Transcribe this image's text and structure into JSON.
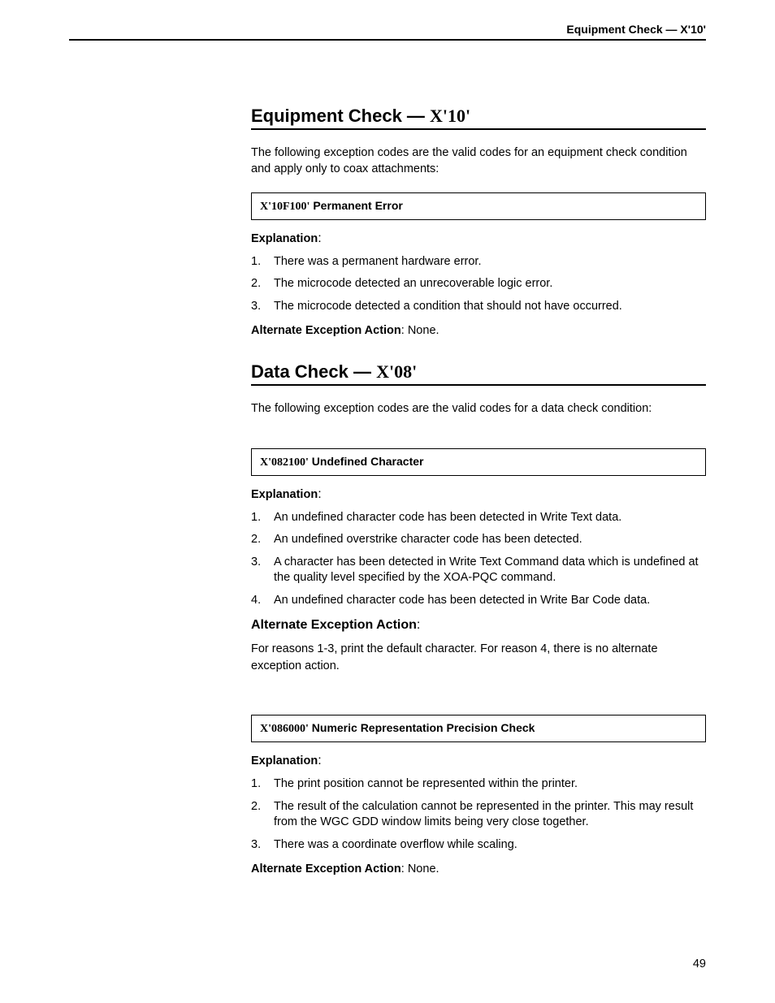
{
  "header": {
    "running_title": "Equipment Check — X'10'"
  },
  "section1": {
    "title_prefix": "Equipment Check — ",
    "title_hex": "X'10'",
    "intro": "The following exception codes are the valid codes for an equipment check condition and apply only to coax attachments:",
    "codebox_hex": "X'10F100'",
    "codebox_label": " Permanent Error",
    "explanation_label": "Explanation",
    "items": [
      "There was a permanent hardware error.",
      "The microcode detected an unrecoverable logic error.",
      "The microcode detected a condition that should not have occurred."
    ],
    "alt_label": "Alternate Exception Action",
    "alt_value": ":  None."
  },
  "section2": {
    "title_prefix": "Data Check — ",
    "title_hex": "X'08'",
    "intro": "The following exception codes are the valid codes for a data check condition:",
    "block1": {
      "codebox_hex": "X'082100'",
      "codebox_label": " Undefined Character",
      "explanation_label": "Explanation",
      "items": [
        "An undefined character code has been detected in Write Text data.",
        "An undefined overstrike character code has been detected.",
        "A character has been detected in Write Text Command data which is undefined at the quality level specified by the XOA-PQC command.",
        "An undefined character code has been detected in Write Bar Code data."
      ],
      "alt_label": "Alternate Exception Action",
      "alt_colon": ":",
      "alt_text": "For reasons 1-3, print the default character. For reason 4, there is no alternate exception action."
    },
    "block2": {
      "codebox_hex": "X'086000'",
      "codebox_label": " Numeric Representation Precision Check",
      "explanation_label": "Explanation",
      "items": [
        "The print position cannot be represented within the printer.",
        "The result of the calculation cannot be represented in the printer. This may result from the WGC GDD window limits being very close together.",
        "There was a coordinate overflow while scaling."
      ],
      "alt_label": "Alternate Exception Action",
      "alt_value": ":  None."
    }
  },
  "page_number": "49"
}
